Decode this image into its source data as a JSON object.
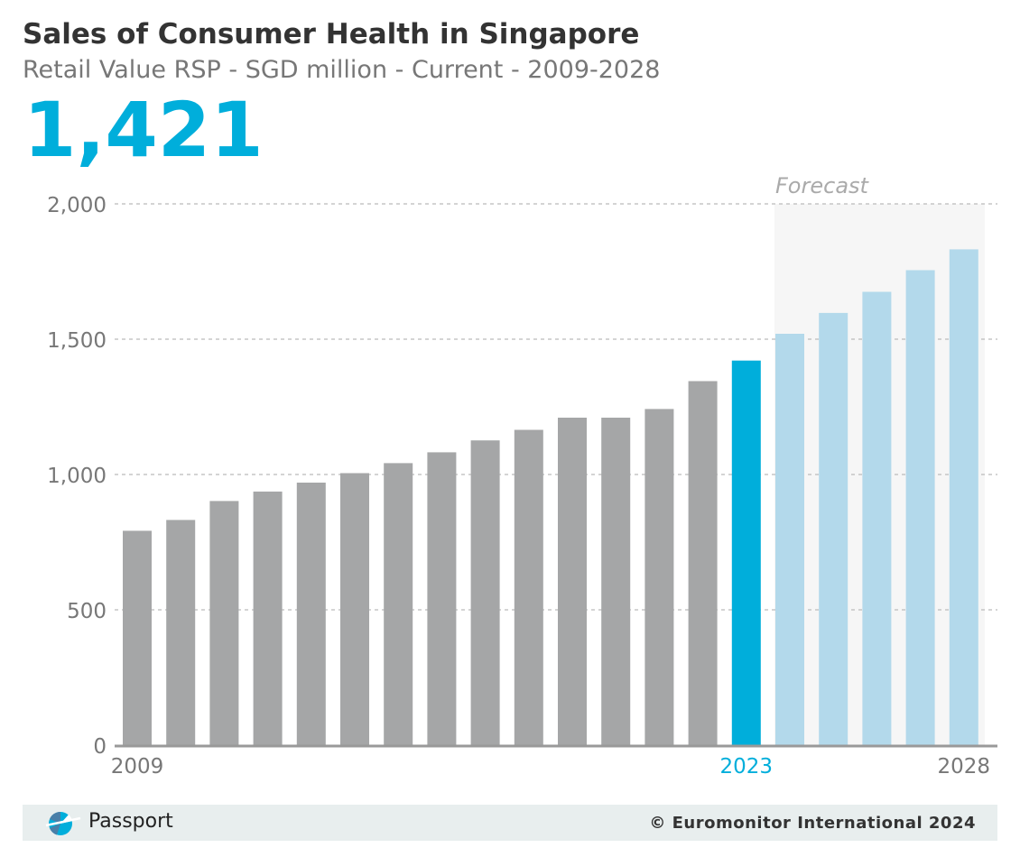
{
  "title": "Sales of Consumer Health in Singapore",
  "subtitle": "Retail Value RSP - SGD million - Current - 2009-2028",
  "headline_value": "1,421",
  "forecast_label": "Forecast",
  "footer": {
    "brand": "Passport",
    "copyright": "© Euromonitor International 2024"
  },
  "colors": {
    "historic": "#a5a6a7",
    "current": "#00aedb",
    "forecast": "#b3d9eb",
    "forecast_band": "#f6f6f6",
    "axis_label": "#777777",
    "current_label": "#00aedb",
    "gridline": "#bbbbbb",
    "baseline": "#999999"
  },
  "chart_data": {
    "type": "bar",
    "title": "Sales of Consumer Health in Singapore",
    "subtitle": "Retail Value RSP - SGD million - Current - 2009-2028",
    "categories": [
      "2009",
      "2010",
      "2011",
      "2012",
      "2013",
      "2014",
      "2015",
      "2016",
      "2017",
      "2018",
      "2019",
      "2020",
      "2021",
      "2022",
      "2023",
      "2024",
      "2025",
      "2026",
      "2027",
      "2028"
    ],
    "values": [
      792,
      832,
      902,
      937,
      970,
      1005,
      1042,
      1082,
      1126,
      1165,
      1210,
      1210,
      1242,
      1345,
      1421,
      1520,
      1597,
      1675,
      1755,
      1832
    ],
    "highlight_category": "2023",
    "forecast_categories": [
      "2024",
      "2025",
      "2026",
      "2027",
      "2028"
    ],
    "x_tick_labels": [
      "2009",
      "2023",
      "2028"
    ],
    "y_ticks": [
      0,
      500,
      1000,
      1500,
      2000
    ],
    "y_tick_labels": [
      "0",
      "500",
      "1,000",
      "1,500",
      "2,000"
    ],
    "ylim": [
      0,
      2000
    ],
    "xlabel": "",
    "ylabel": "",
    "grid": true
  }
}
